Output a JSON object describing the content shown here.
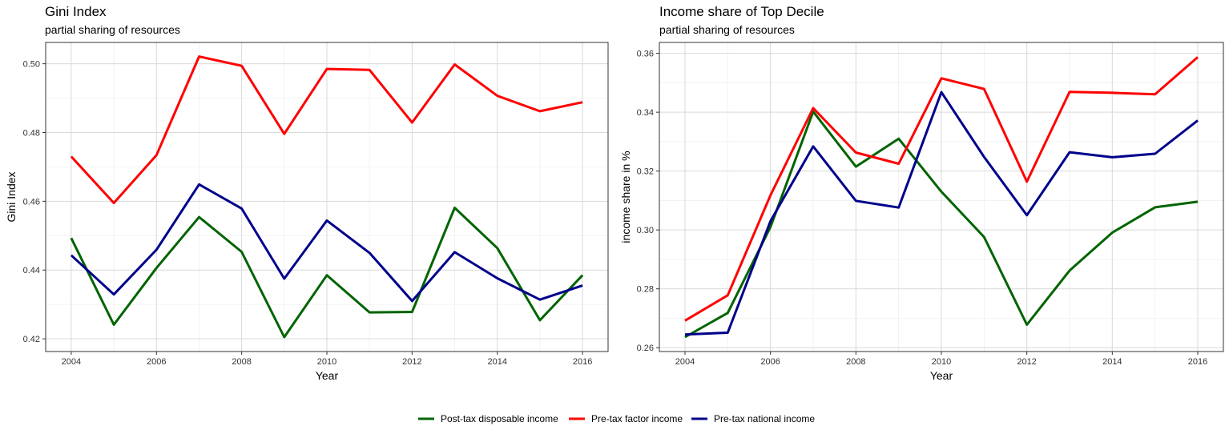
{
  "legend": {
    "entries": [
      {
        "name": "Post-tax disposable income",
        "color": "#006400"
      },
      {
        "name": "Pre-tax factor income",
        "color": "#ff0000"
      },
      {
        "name": "Pre-tax national income",
        "color": "#00008b"
      }
    ]
  },
  "chart_data": [
    {
      "type": "line",
      "title": "Gini Index",
      "subtitle": "partial sharing of resources",
      "xlabel": "Year",
      "ylabel": "Gini Index",
      "x": [
        2004,
        2005,
        2006,
        2007,
        2008,
        2009,
        2010,
        2011,
        2012,
        2013,
        2014,
        2015,
        2016
      ],
      "xlim": [
        2003.4,
        2016.6
      ],
      "ylim": [
        0.4163,
        0.5062
      ],
      "xticks": [
        2004,
        2006,
        2008,
        2010,
        2012,
        2014,
        2016
      ],
      "yticks": [
        0.42,
        0.44,
        0.46,
        0.48,
        0.5
      ],
      "ytick_labels": [
        "0.42",
        "0.44",
        "0.46",
        "0.48",
        "0.50"
      ],
      "grid": true,
      "legend_position": "bottom",
      "series": [
        {
          "name": "Post-tax disposable income",
          "color": "#006400",
          "values": [
            0.4493,
            0.4241,
            0.4406,
            0.4554,
            0.4453,
            0.4205,
            0.4385,
            0.4277,
            0.4278,
            0.4581,
            0.4464,
            0.4254,
            0.4385
          ]
        },
        {
          "name": "Pre-tax factor income",
          "color": "#ff0000",
          "values": [
            0.473,
            0.4595,
            0.4734,
            0.5021,
            0.4994,
            0.4796,
            0.4985,
            0.4982,
            0.4829,
            0.4998,
            0.4907,
            0.4862,
            0.4888
          ]
        },
        {
          "name": "Pre-tax national income",
          "color": "#00008b",
          "values": [
            0.4443,
            0.4329,
            0.4459,
            0.4649,
            0.4579,
            0.4375,
            0.4544,
            0.445,
            0.431,
            0.4452,
            0.4376,
            0.4314,
            0.4355
          ]
        }
      ]
    },
    {
      "type": "line",
      "title": "Income share of Top Decile",
      "subtitle": "partial sharing of resources",
      "xlabel": "Year",
      "ylabel": "income share in %",
      "x": [
        2004,
        2005,
        2006,
        2007,
        2008,
        2009,
        2010,
        2011,
        2012,
        2013,
        2014,
        2015,
        2016
      ],
      "xlim": [
        2003.4,
        2016.6
      ],
      "ylim": [
        0.2587,
        0.3637
      ],
      "xticks": [
        2004,
        2006,
        2008,
        2010,
        2012,
        2014,
        2016
      ],
      "yticks": [
        0.26,
        0.28,
        0.3,
        0.32,
        0.34,
        0.36
      ],
      "ytick_labels": [
        "0.26",
        "0.28",
        "0.30",
        "0.32",
        "0.34",
        "0.36"
      ],
      "grid": true,
      "legend_position": "bottom",
      "series": [
        {
          "name": "Post-tax disposable income",
          "color": "#006400",
          "values": [
            0.2636,
            0.2718,
            0.301,
            0.3402,
            0.3215,
            0.331,
            0.313,
            0.2976,
            0.2678,
            0.2862,
            0.2991,
            0.3077,
            0.3096
          ]
        },
        {
          "name": "Pre-tax factor income",
          "color": "#ff0000",
          "values": [
            0.2692,
            0.2778,
            0.3118,
            0.3414,
            0.3263,
            0.3225,
            0.3515,
            0.3479,
            0.3164,
            0.3469,
            0.3466,
            0.3461,
            0.3587
          ]
        },
        {
          "name": "Pre-tax national income",
          "color": "#00008b",
          "values": [
            0.2645,
            0.2651,
            0.303,
            0.3284,
            0.3099,
            0.3076,
            0.3468,
            0.3248,
            0.305,
            0.3264,
            0.3247,
            0.3259,
            0.3372
          ]
        }
      ]
    }
  ]
}
